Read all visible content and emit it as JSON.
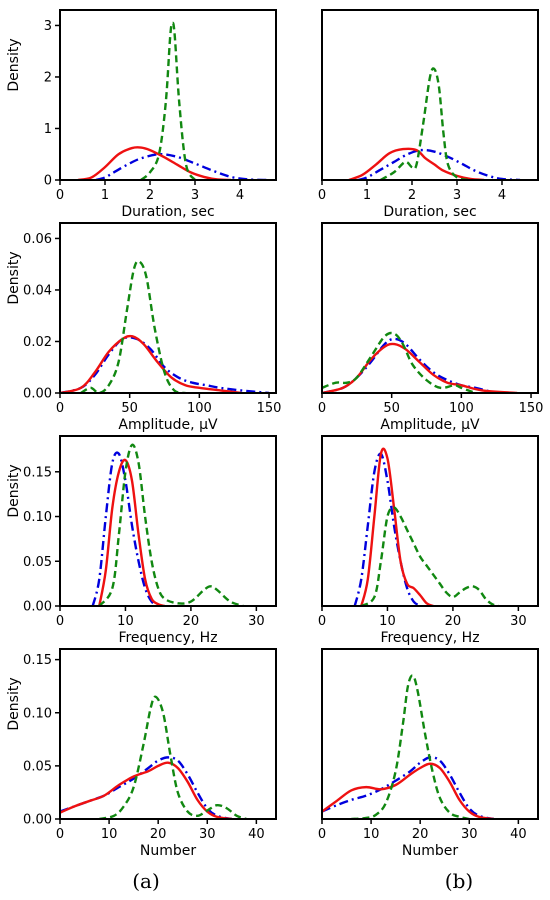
{
  "colors": {
    "blue": "#0000dd",
    "red": "#ee1111",
    "green": "#118811"
  },
  "panel_labels": {
    "a": "(a)",
    "b": "(b)"
  },
  "chart_data": [
    {
      "type": "line",
      "column": "a",
      "xlabel": "Duration, sec",
      "ylabel": "Density",
      "xlim": [
        0,
        4.8
      ],
      "ylim": [
        0,
        3.3
      ],
      "xticks": [
        "0",
        "1",
        "2",
        "3",
        "4"
      ],
      "yticks": [
        "0",
        "1",
        "2",
        "3"
      ],
      "series": [
        {
          "style": "dashdot",
          "color": "#0000dd",
          "x": [
            0.8,
            1.0,
            1.2,
            1.5,
            1.8,
            2.2,
            2.6,
            3.0,
            3.4,
            3.8,
            4.2,
            4.6
          ],
          "y": [
            0.0,
            0.05,
            0.15,
            0.3,
            0.42,
            0.5,
            0.45,
            0.32,
            0.18,
            0.06,
            0.01,
            0.0
          ]
        },
        {
          "style": "solid",
          "color": "#ee1111",
          "x": [
            0.4,
            0.7,
            1.0,
            1.3,
            1.6,
            1.8,
            2.0,
            2.3,
            2.6,
            2.9,
            3.2,
            3.5,
            3.8
          ],
          "y": [
            0.0,
            0.05,
            0.25,
            0.5,
            0.62,
            0.63,
            0.58,
            0.45,
            0.3,
            0.15,
            0.06,
            0.01,
            0.0
          ]
        },
        {
          "style": "dashed",
          "color": "#118811",
          "x": [
            1.8,
            2.0,
            2.2,
            2.35,
            2.45,
            2.5,
            2.55,
            2.65,
            2.8,
            3.0
          ],
          "y": [
            0.0,
            0.15,
            0.5,
            1.5,
            2.8,
            3.05,
            2.8,
            1.5,
            0.3,
            0.0
          ]
        }
      ]
    },
    {
      "type": "line",
      "column": "b",
      "xlabel": "Duration, sec",
      "ylabel": "",
      "xlim": [
        0,
        4.8
      ],
      "ylim": [
        0,
        3.3
      ],
      "xticks": [
        "0",
        "1",
        "2",
        "3",
        "4"
      ],
      "yticks": [],
      "series": [
        {
          "style": "dashdot",
          "color": "#0000dd",
          "x": [
            0.8,
            1.0,
            1.3,
            1.6,
            1.9,
            2.2,
            2.5,
            2.8,
            3.1,
            3.4,
            3.7,
            4.0,
            4.4
          ],
          "y": [
            0.0,
            0.05,
            0.2,
            0.35,
            0.5,
            0.58,
            0.55,
            0.45,
            0.32,
            0.18,
            0.08,
            0.02,
            0.0
          ]
        },
        {
          "style": "solid",
          "color": "#ee1111",
          "x": [
            0.6,
            0.9,
            1.2,
            1.5,
            1.8,
            2.1,
            2.3,
            2.5,
            2.7,
            3.0,
            3.3,
            3.6
          ],
          "y": [
            0.0,
            0.1,
            0.3,
            0.52,
            0.6,
            0.58,
            0.42,
            0.3,
            0.18,
            0.08,
            0.02,
            0.0
          ]
        },
        {
          "style": "dashed",
          "color": "#118811",
          "x": [
            1.3,
            1.6,
            1.85,
            2.0,
            2.1,
            2.25,
            2.4,
            2.5,
            2.6,
            2.7,
            2.8,
            3.0,
            3.3
          ],
          "y": [
            0.0,
            0.15,
            0.35,
            0.25,
            0.3,
            1.1,
            2.0,
            2.15,
            1.8,
            0.9,
            0.3,
            0.05,
            0.0
          ]
        }
      ]
    },
    {
      "type": "line",
      "column": "a",
      "xlabel": "Amplitude, µV",
      "ylabel": "Density",
      "xlim": [
        0,
        155
      ],
      "ylim": [
        0,
        0.066
      ],
      "xticks": [
        "0",
        "50",
        "100",
        "150"
      ],
      "yticks": [
        "0.00",
        "0.02",
        "0.04",
        "0.06"
      ],
      "series": [
        {
          "style": "dashdot",
          "color": "#0000dd",
          "x": [
            0,
            15,
            25,
            35,
            45,
            55,
            65,
            75,
            85,
            95,
            105,
            115,
            130,
            150
          ],
          "y": [
            0.0,
            0.002,
            0.007,
            0.015,
            0.021,
            0.021,
            0.017,
            0.01,
            0.006,
            0.004,
            0.003,
            0.002,
            0.001,
            0.0
          ]
        },
        {
          "style": "solid",
          "color": "#ee1111",
          "x": [
            0,
            15,
            25,
            35,
            45,
            52,
            60,
            70,
            80,
            90,
            100,
            115,
            130
          ],
          "y": [
            0.0,
            0.002,
            0.008,
            0.016,
            0.021,
            0.022,
            0.019,
            0.012,
            0.006,
            0.003,
            0.002,
            0.001,
            0.0
          ]
        },
        {
          "style": "dashed",
          "color": "#118811",
          "x": [
            15,
            22,
            28,
            35,
            42,
            48,
            53,
            57,
            62,
            68,
            75,
            82,
            90
          ],
          "y": [
            0.0,
            0.002,
            0.0,
            0.003,
            0.012,
            0.032,
            0.048,
            0.051,
            0.045,
            0.025,
            0.008,
            0.001,
            0.0
          ]
        }
      ]
    },
    {
      "type": "line",
      "column": "b",
      "xlabel": "Amplitude, µV",
      "ylabel": "",
      "xlim": [
        0,
        155
      ],
      "ylim": [
        0,
        0.066
      ],
      "xticks": [
        "0",
        "50",
        "100",
        "150"
      ],
      "yticks": [],
      "series": [
        {
          "style": "dashdot",
          "color": "#0000dd",
          "x": [
            0,
            15,
            25,
            35,
            45,
            52,
            60,
            70,
            80,
            90,
            100,
            110,
            125
          ],
          "y": [
            0.0,
            0.002,
            0.006,
            0.012,
            0.019,
            0.021,
            0.019,
            0.013,
            0.008,
            0.005,
            0.003,
            0.002,
            0.0
          ]
        },
        {
          "style": "solid",
          "color": "#ee1111",
          "x": [
            0,
            15,
            25,
            35,
            45,
            52,
            60,
            70,
            80,
            90,
            100,
            115,
            140
          ],
          "y": [
            0.0,
            0.002,
            0.006,
            0.013,
            0.018,
            0.019,
            0.017,
            0.012,
            0.007,
            0.004,
            0.003,
            0.001,
            0.0
          ]
        },
        {
          "style": "dashed",
          "color": "#118811",
          "x": [
            0,
            10,
            18,
            25,
            35,
            45,
            52,
            58,
            65,
            75,
            85,
            95,
            100,
            110
          ],
          "y": [
            0.002,
            0.004,
            0.004,
            0.006,
            0.014,
            0.022,
            0.023,
            0.019,
            0.011,
            0.005,
            0.002,
            0.003,
            0.002,
            0.0
          ]
        }
      ]
    },
    {
      "type": "line",
      "column": "a",
      "xlabel": "Frequency, Hz",
      "ylabel": "Density",
      "xlim": [
        0,
        33
      ],
      "ylim": [
        0,
        0.19
      ],
      "xticks": [
        "0",
        "10",
        "20",
        "30"
      ],
      "yticks": [
        "0.00",
        "0.05",
        "0.10",
        "0.15"
      ],
      "series": [
        {
          "style": "dashdot",
          "color": "#0000dd",
          "x": [
            5,
            6,
            7,
            8,
            9,
            10,
            11,
            12,
            13,
            14,
            15
          ],
          "y": [
            0.0,
            0.03,
            0.1,
            0.16,
            0.17,
            0.14,
            0.09,
            0.05,
            0.02,
            0.005,
            0.0
          ]
        },
        {
          "style": "solid",
          "color": "#ee1111",
          "x": [
            6,
            7,
            8,
            9,
            10,
            11,
            12,
            13,
            14,
            15,
            16
          ],
          "y": [
            0.0,
            0.04,
            0.11,
            0.15,
            0.163,
            0.14,
            0.08,
            0.03,
            0.008,
            0.002,
            0.0
          ]
        },
        {
          "style": "dashed",
          "color": "#118811",
          "x": [
            6,
            8,
            9,
            10,
            11,
            12,
            13,
            14,
            15,
            16,
            18,
            20,
            22,
            23,
            24,
            26,
            28
          ],
          "y": [
            0.0,
            0.02,
            0.08,
            0.15,
            0.18,
            0.16,
            0.1,
            0.05,
            0.02,
            0.008,
            0.003,
            0.005,
            0.018,
            0.022,
            0.018,
            0.005,
            0.0
          ]
        }
      ]
    },
    {
      "type": "line",
      "column": "b",
      "xlabel": "Frequency, Hz",
      "ylabel": "",
      "xlim": [
        0,
        33
      ],
      "ylim": [
        0,
        0.19
      ],
      "xticks": [
        "0",
        "10",
        "20",
        "30"
      ],
      "yticks": [],
      "series": [
        {
          "style": "dashdot",
          "color": "#0000dd",
          "x": [
            5,
            6,
            7,
            8,
            9,
            10,
            11,
            12,
            13,
            14,
            15
          ],
          "y": [
            0.0,
            0.03,
            0.09,
            0.15,
            0.17,
            0.14,
            0.09,
            0.05,
            0.02,
            0.005,
            0.0
          ]
        },
        {
          "style": "solid",
          "color": "#ee1111",
          "x": [
            6,
            7,
            8,
            9,
            10,
            11,
            12,
            13,
            14,
            15,
            16,
            17
          ],
          "y": [
            0.0,
            0.03,
            0.1,
            0.17,
            0.165,
            0.11,
            0.05,
            0.025,
            0.02,
            0.012,
            0.003,
            0.0
          ]
        },
        {
          "style": "dashed",
          "color": "#118811",
          "x": [
            6,
            8,
            9,
            10,
            11,
            12,
            13,
            14,
            15,
            16,
            17,
            18,
            19,
            20,
            21,
            22,
            23,
            24,
            25,
            26,
            27
          ],
          "y": [
            0.0,
            0.01,
            0.05,
            0.1,
            0.11,
            0.1,
            0.085,
            0.07,
            0.055,
            0.045,
            0.035,
            0.025,
            0.015,
            0.01,
            0.015,
            0.02,
            0.022,
            0.018,
            0.008,
            0.002,
            0.0
          ]
        }
      ]
    },
    {
      "type": "line",
      "column": "a",
      "xlabel": "Number",
      "ylabel": "Density",
      "xlim": [
        0,
        44
      ],
      "ylim": [
        0,
        0.16
      ],
      "xticks": [
        "0",
        "10",
        "20",
        "30",
        "40"
      ],
      "yticks": [
        "0.00",
        "0.05",
        "0.10",
        "0.15"
      ],
      "series": [
        {
          "style": "dashdot",
          "color": "#0000dd",
          "x": [
            0,
            3,
            6,
            9,
            12,
            15,
            18,
            20,
            22,
            24,
            26,
            28,
            30,
            32,
            35
          ],
          "y": [
            0.007,
            0.012,
            0.017,
            0.022,
            0.03,
            0.038,
            0.048,
            0.055,
            0.058,
            0.055,
            0.042,
            0.025,
            0.01,
            0.003,
            0.0
          ]
        },
        {
          "style": "solid",
          "color": "#ee1111",
          "x": [
            0,
            3,
            6,
            9,
            12,
            15,
            18,
            20,
            22,
            24,
            26,
            28,
            30,
            32,
            35
          ],
          "y": [
            0.006,
            0.012,
            0.017,
            0.022,
            0.032,
            0.04,
            0.045,
            0.05,
            0.053,
            0.048,
            0.035,
            0.018,
            0.007,
            0.002,
            0.0
          ]
        },
        {
          "style": "dashed",
          "color": "#118811",
          "x": [
            8,
            11,
            13,
            15,
            17,
            18.5,
            19.5,
            21,
            22.5,
            24,
            26,
            28,
            30,
            32,
            34,
            36,
            38
          ],
          "y": [
            0.0,
            0.003,
            0.012,
            0.03,
            0.07,
            0.105,
            0.115,
            0.1,
            0.06,
            0.025,
            0.007,
            0.003,
            0.008,
            0.013,
            0.01,
            0.003,
            0.0
          ]
        }
      ]
    },
    {
      "type": "line",
      "column": "b",
      "xlabel": "Number",
      "ylabel": "",
      "xlim": [
        0,
        44
      ],
      "ylim": [
        0,
        0.16
      ],
      "xticks": [
        "0",
        "10",
        "20",
        "30",
        "40"
      ],
      "yticks": [],
      "series": [
        {
          "style": "dashdot",
          "color": "#0000dd",
          "x": [
            0,
            3,
            6,
            9,
            12,
            15,
            18,
            20,
            22,
            24,
            26,
            28,
            30,
            32,
            35
          ],
          "y": [
            0.007,
            0.013,
            0.018,
            0.022,
            0.028,
            0.036,
            0.045,
            0.053,
            0.058,
            0.055,
            0.042,
            0.025,
            0.01,
            0.003,
            0.0
          ]
        },
        {
          "style": "solid",
          "color": "#ee1111",
          "x": [
            0,
            3,
            6,
            9,
            12,
            15,
            18,
            20,
            22,
            24,
            26,
            28,
            30,
            32,
            35
          ],
          "y": [
            0.007,
            0.017,
            0.027,
            0.03,
            0.028,
            0.032,
            0.042,
            0.048,
            0.052,
            0.048,
            0.035,
            0.018,
            0.007,
            0.002,
            0.0
          ]
        },
        {
          "style": "dashed",
          "color": "#118811",
          "x": [
            6,
            9,
            11,
            13,
            15,
            16.5,
            17.5,
            18.5,
            19.5,
            21,
            22.5,
            24,
            26,
            28,
            30
          ],
          "y": [
            0.0,
            0.001,
            0.004,
            0.015,
            0.045,
            0.09,
            0.125,
            0.135,
            0.12,
            0.08,
            0.045,
            0.02,
            0.006,
            0.002,
            0.0
          ]
        }
      ]
    }
  ]
}
